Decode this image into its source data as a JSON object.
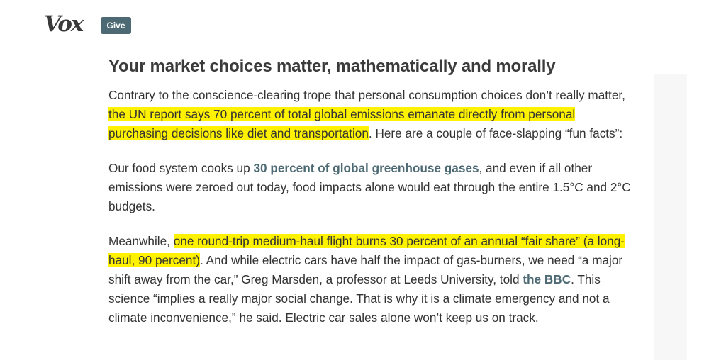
{
  "header": {
    "logo_text": "Vox",
    "give_label": "Give"
  },
  "article": {
    "headline": "Your market choices matter, mathematically and morally",
    "p1": {
      "t1": "Contrary to the conscience-clearing trope that personal consumption choices don’t really matter, ",
      "highlight": "the UN report says 70 percent of total global emissions emanate directly from personal purchasing decisions like diet and transportation",
      "t2": ". Here are a couple of face-slapping “fun facts”:"
    },
    "p2": {
      "t1": "Our food system cooks up ",
      "link": "30 percent of global greenhouse gases",
      "t2": ", and even if all other emissions were zeroed out today, food impacts alone would eat through the entire 1.5°C and 2°C budgets."
    },
    "p3": {
      "t1": "Meanwhile, ",
      "highlight": "one round-trip medium-haul flight burns 30 percent of an annual “fair share” (a long-haul, 90 percent)",
      "t2": ". And while electric cars have half the impact of gas-burners, we need “a major shift away from the car,” Greg Marsden, a professor at Leeds University, told ",
      "link": "the BBC",
      "t3": ". This science “implies a really major social change. That is why it is a climate emergency and not a climate inconvenience,” he said. Electric car sales alone won’t keep us on track."
    }
  },
  "colors": {
    "highlight": "#fff200",
    "link": "#4d6a74",
    "button": "#4d6a74"
  }
}
